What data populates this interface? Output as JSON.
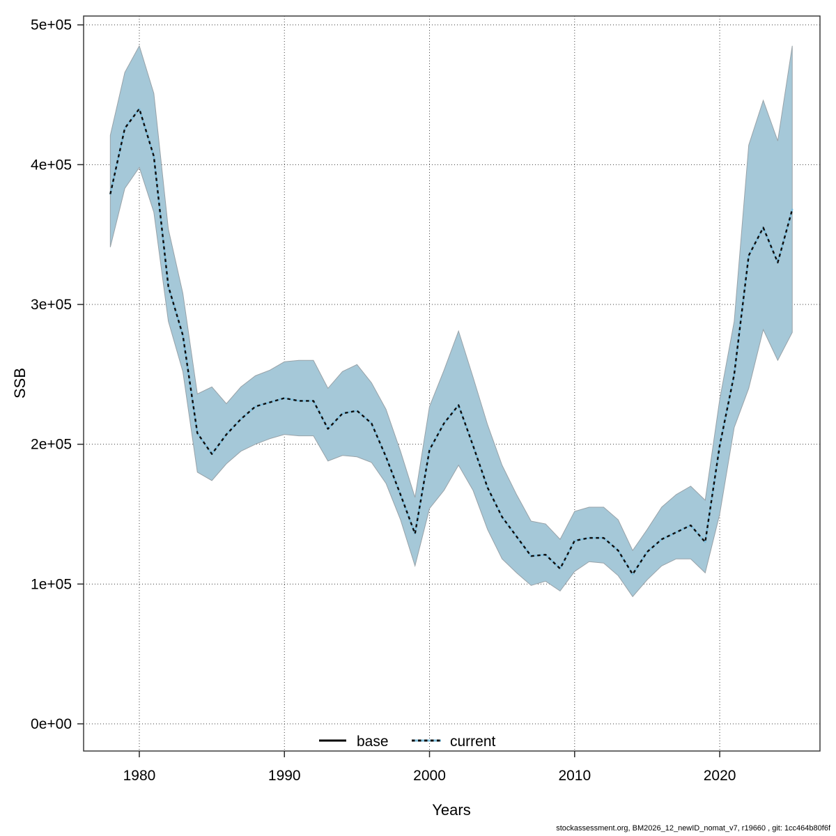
{
  "window": {
    "background": "#ffffff"
  },
  "chart_data": {
    "type": "line",
    "subtype": "ribbon-with-dotted-line",
    "title": "",
    "xlabel": "Years",
    "ylabel": "SSB",
    "x": [
      1978,
      1979,
      1980,
      1981,
      1982,
      1983,
      1984,
      1985,
      1986,
      1987,
      1988,
      1989,
      1990,
      1991,
      1992,
      1993,
      1994,
      1995,
      1996,
      1997,
      1998,
      1999,
      2000,
      2001,
      2002,
      2003,
      2004,
      2005,
      2006,
      2007,
      2008,
      2009,
      2010,
      2011,
      2012,
      2013,
      2014,
      2015,
      2016,
      2017,
      2018,
      2019,
      2020,
      2021,
      2022,
      2023,
      2024,
      2025
    ],
    "series": [
      {
        "name": "current",
        "values": [
          379000,
          426000,
          440000,
          406000,
          313000,
          278000,
          208000,
          193000,
          207000,
          218000,
          227000,
          230000,
          233000,
          231000,
          231000,
          211000,
          222000,
          224000,
          215000,
          191000,
          164000,
          136000,
          196000,
          215000,
          228000,
          199000,
          169000,
          148000,
          134000,
          120000,
          121000,
          111000,
          131000,
          133000,
          133000,
          124000,
          107000,
          123000,
          132000,
          137000,
          142000,
          130000,
          199000,
          250000,
          335000,
          355000,
          330000,
          368000
        ]
      }
    ],
    "ribbon": {
      "name": "current-confidence-interval",
      "lo": [
        341000,
        383000,
        398000,
        366000,
        288000,
        252000,
        180000,
        174000,
        186000,
        195000,
        200000,
        204000,
        207000,
        206000,
        206000,
        188000,
        192000,
        191000,
        187000,
        172000,
        146000,
        113000,
        154000,
        167000,
        185000,
        167000,
        139000,
        118000,
        108000,
        99000,
        102000,
        95000,
        109000,
        116000,
        115000,
        106000,
        91000,
        103000,
        113000,
        118000,
        118000,
        108000,
        150000,
        212000,
        240000,
        282000,
        260000,
        280000
      ],
      "hi": [
        421000,
        466000,
        485000,
        451000,
        354000,
        308000,
        236000,
        241000,
        229000,
        241000,
        249000,
        253000,
        259000,
        260000,
        260000,
        240000,
        252000,
        257000,
        244000,
        225000,
        195000,
        162000,
        227000,
        253000,
        281000,
        248000,
        214000,
        185000,
        164000,
        145000,
        143000,
        132000,
        152000,
        155000,
        155000,
        146000,
        124000,
        139000,
        155000,
        164000,
        170000,
        160000,
        232000,
        288000,
        414000,
        446000,
        417000,
        485000
      ]
    },
    "legend": [
      {
        "label": "base",
        "line": "solid",
        "color": "#000000"
      },
      {
        "label": "current",
        "line": "dotted",
        "color": "#7fbedc",
        "overlay": "#0d0d0d"
      }
    ],
    "legend_position": "bottom-center-inside",
    "grid": true,
    "x_ticks": [
      {
        "value": 1980,
        "label": "1980"
      },
      {
        "value": 1990,
        "label": "1990"
      },
      {
        "value": 2000,
        "label": "2000"
      },
      {
        "value": 2010,
        "label": "2010"
      },
      {
        "value": 2020,
        "label": "2020"
      }
    ],
    "y_ticks": [
      {
        "value": 0,
        "label": "0e+00"
      },
      {
        "value": 100000,
        "label": "1e+05"
      },
      {
        "value": 200000,
        "label": "2e+05"
      },
      {
        "value": 300000,
        "label": "3e+05"
      },
      {
        "value": 400000,
        "label": "4e+05"
      },
      {
        "value": 500000,
        "label": "5e+05"
      }
    ],
    "xlim": [
      1976.16,
      2026.91
    ],
    "ylim": [
      -19436,
      506329
    ],
    "colors": {
      "band_fill": "#a5c8d8",
      "band_edge": "#98a2a8",
      "line_blue": "#7fbedc",
      "line_dash": "#0d0d0d",
      "grid": "#1a1a1a",
      "frame": "#3c3c3c",
      "tick": "#2a2a2a",
      "text": "#000000"
    }
  },
  "footer": {
    "text": "stockassessment.org, BM2026_12_newID_nomat_v7, r19660 , git: 1cc464b80f6f"
  }
}
